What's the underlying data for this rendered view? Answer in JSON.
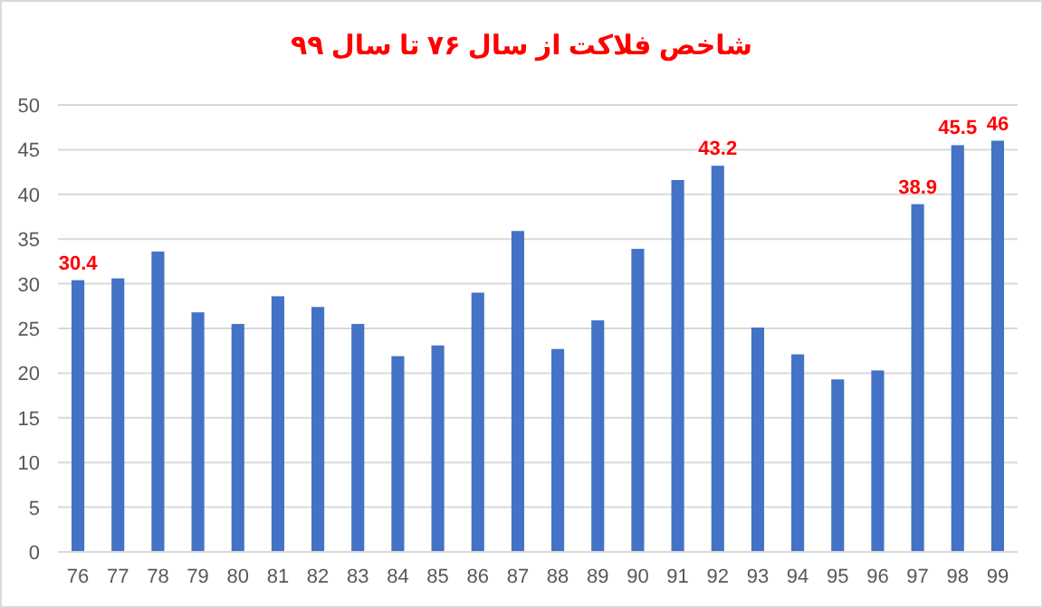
{
  "chart_data": {
    "type": "bar",
    "title": "شاخص فلاکت از سال ۷۶ تا سال ۹۹",
    "categories": [
      "76",
      "77",
      "78",
      "79",
      "80",
      "81",
      "82",
      "83",
      "84",
      "85",
      "86",
      "87",
      "88",
      "89",
      "90",
      "91",
      "92",
      "93",
      "94",
      "95",
      "96",
      "97",
      "98",
      "99"
    ],
    "values": [
      30.4,
      30.6,
      33.6,
      26.8,
      25.5,
      28.6,
      27.4,
      25.5,
      21.9,
      23.1,
      29.0,
      35.9,
      22.7,
      25.9,
      33.9,
      41.6,
      43.2,
      25.1,
      22.1,
      19.3,
      20.3,
      38.9,
      45.5,
      46
    ],
    "value_labels": [
      "30.4",
      null,
      null,
      null,
      null,
      null,
      null,
      null,
      null,
      null,
      null,
      null,
      null,
      null,
      null,
      null,
      "43.2",
      null,
      null,
      null,
      null,
      "38.9",
      "45.5",
      "46"
    ],
    "color": "#4472c4",
    "ylim": [
      0,
      50
    ],
    "yticks": [
      0,
      5,
      10,
      15,
      20,
      25,
      30,
      35,
      40,
      45,
      50
    ],
    "grid": "y"
  }
}
